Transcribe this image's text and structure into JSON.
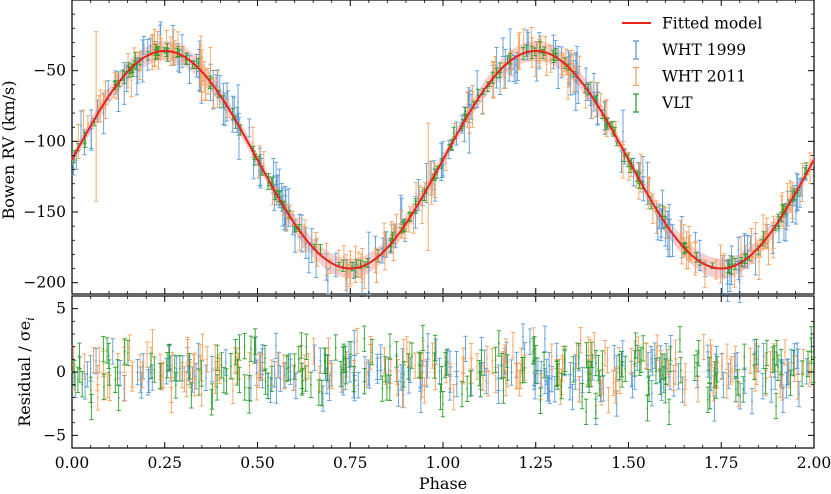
{
  "chart_data": [
    {
      "type": "line",
      "panel": "top",
      "ylabel": "Bowen RV (km/s)",
      "xlim": [
        0,
        2
      ],
      "ylim": [
        -208,
        0
      ],
      "yticks": [
        -200,
        -150,
        -100,
        -50
      ],
      "ytick_labels": [
        "−200",
        "−150",
        "−100",
        "−50"
      ],
      "model": {
        "name": "Fitted model",
        "gamma": -113,
        "K": 77,
        "phase_of_max": 0.25,
        "color": "#e8221c",
        "band_color": "#f4a6a6",
        "x": [
          0.0,
          0.125,
          0.25,
          0.375,
          0.5,
          0.625,
          0.75,
          0.875,
          1.0,
          1.125,
          1.25,
          1.375,
          1.5,
          1.625,
          1.75,
          1.875,
          2.0
        ],
        "y": [
          -113,
          -58.6,
          -36,
          -58.6,
          -113,
          -167.4,
          -190,
          -167.4,
          -113,
          -58.6,
          -36,
          -58.6,
          -113,
          -167.4,
          -190,
          -167.4,
          -113
        ]
      },
      "series": [
        {
          "name": "WHT 1999",
          "color": "#5b9bd5",
          "n_points": 210,
          "scatter_kms": 6,
          "typical_error_kms": 10,
          "outlier_errors": [
            [
              0.8,
              22
            ]
          ]
        },
        {
          "name": "WHT 2011",
          "color": "#f5a25d",
          "n_points": 200,
          "scatter_kms": 5,
          "typical_error_kms": 9,
          "outlier_errors": [
            [
              0.065,
              60
            ],
            [
              0.96,
              45
            ]
          ]
        },
        {
          "name": "VLT",
          "color": "#2ca02c",
          "n_points": 190,
          "scatter_kms": 2,
          "typical_error_kms": 3
        }
      ],
      "legend": "top-right"
    },
    {
      "type": "scatter",
      "panel": "bottom",
      "ylabel": "Residual / σe",
      "ylabel_subscript": "i",
      "xlabel": "Phase",
      "xlim": [
        0,
        2
      ],
      "ylim": [
        -6,
        6
      ],
      "yticks": [
        -5,
        0,
        5
      ],
      "ytick_labels": [
        "−5",
        "0",
        "5"
      ],
      "xticks": [
        0.0,
        0.25,
        0.5,
        0.75,
        1.0,
        1.25,
        1.5,
        1.75,
        2.0
      ],
      "xtick_labels": [
        "0.00",
        "0.25",
        "0.50",
        "0.75",
        "1.00",
        "1.25",
        "1.50",
        "1.75",
        "2.00"
      ],
      "series": [
        {
          "name": "WHT 1999",
          "color": "#5b9bd5",
          "scatter_sigma": 1.1,
          "error_sigma": 1
        },
        {
          "name": "WHT 2011",
          "color": "#f5a25d",
          "scatter_sigma": 1.1,
          "error_sigma": 1
        },
        {
          "name": "VLT",
          "color": "#2ca02c",
          "scatter_sigma": 1.2,
          "error_sigma": 1
        }
      ]
    }
  ]
}
